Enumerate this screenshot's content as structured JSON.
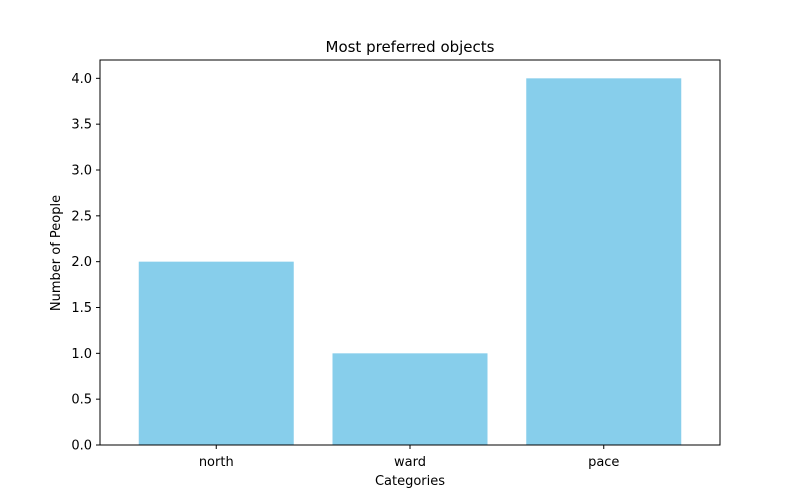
{
  "chart_data": {
    "type": "bar",
    "title": "Most preferred objects",
    "xlabel": "Categories",
    "ylabel": "Number of People",
    "categories": [
      "north",
      "ward",
      "pace"
    ],
    "values": [
      2,
      1,
      4
    ],
    "ylim": [
      0,
      4.2
    ],
    "yticks": [
      0.0,
      0.5,
      1.0,
      1.5,
      2.0,
      2.5,
      3.0,
      3.5,
      4.0
    ],
    "ytick_labels": [
      "0.0",
      "0.5",
      "1.0",
      "1.5",
      "2.0",
      "2.5",
      "3.0",
      "3.5",
      "4.0"
    ],
    "bar_color": "#87ceeb",
    "grid": false,
    "legend": "none"
  }
}
